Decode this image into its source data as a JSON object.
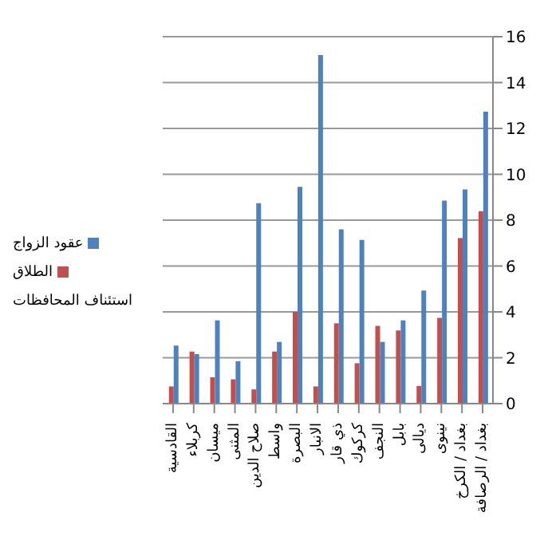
{
  "chart_data": {
    "type": "bar",
    "categories": [
      "القادسية",
      "كربلاء",
      "ميسان",
      "المثنى",
      "صلاح الدين",
      "واسط",
      "البصرة",
      "الانبار",
      "ذي قار",
      "كركوك",
      "النجف",
      "بابل",
      "ديالى",
      "نينوى",
      "بغداد / الكرخ",
      "بغداد / الرصافة"
    ],
    "series": [
      {
        "name": "الطلاق",
        "color": "#c0504d",
        "values": [
          0.75,
          2.27,
          1.15,
          1.06,
          0.62,
          2.27,
          4.0,
          0.75,
          3.5,
          1.76,
          3.39,
          3.19,
          0.77,
          3.74,
          7.22,
          8.39
        ]
      },
      {
        "name": "عقود الزواج",
        "color": "#4f81bd",
        "values": [
          2.53,
          2.16,
          3.63,
          1.85,
          8.74,
          2.69,
          9.45,
          15.2,
          7.6,
          7.14,
          2.69,
          3.63,
          4.93,
          8.85,
          9.34,
          12.73
        ]
      }
    ],
    "ylim": [
      0,
      16
    ],
    "yticks": [
      0,
      2,
      4,
      6,
      8,
      10,
      12,
      14,
      16
    ],
    "grid": "y",
    "legend": "left",
    "annotations": [
      "استئناف المحافظات"
    ]
  }
}
